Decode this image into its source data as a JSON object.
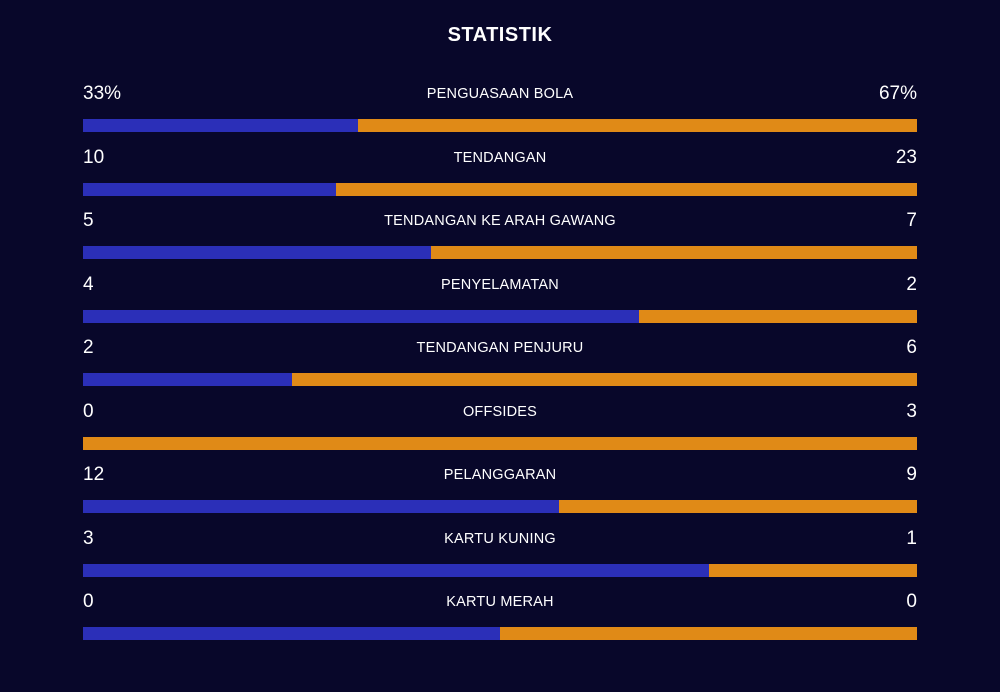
{
  "title": "STATISTIK",
  "colors": {
    "background": "#08072a",
    "home": "#2b2fb8",
    "away": "#e08a17"
  },
  "stats": [
    {
      "label": "PENGUASAAN BOLA",
      "left": "33%",
      "right": "67%",
      "left_share": 0.33
    },
    {
      "label": "TENDANGAN",
      "left": "10",
      "right": "23",
      "left_share": 0.303
    },
    {
      "label": "TENDANGAN KE ARAH GAWANG",
      "left": "5",
      "right": "7",
      "left_share": 0.417
    },
    {
      "label": "PENYELAMATAN",
      "left": "4",
      "right": "2",
      "left_share": 0.667
    },
    {
      "label": "TENDANGAN PENJURU",
      "left": "2",
      "right": "6",
      "left_share": 0.25
    },
    {
      "label": "OFFSIDES",
      "left": "0",
      "right": "3",
      "left_share": 0.0
    },
    {
      "label": "PELANGGARAN",
      "left": "12",
      "right": "9",
      "left_share": 0.571
    },
    {
      "label": "KARTU KUNING",
      "left": "3",
      "right": "1",
      "left_share": 0.75
    },
    {
      "label": "KARTU MERAH",
      "left": "0",
      "right": "0",
      "left_share": 0.5
    }
  ]
}
